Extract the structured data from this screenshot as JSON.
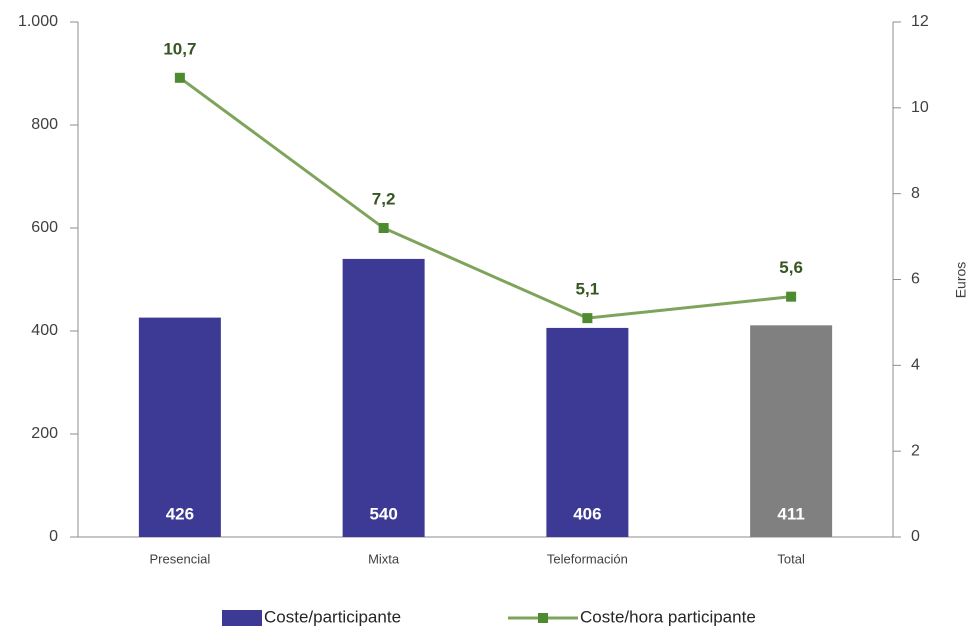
{
  "chart_data": {
    "type": "bar",
    "categories": [
      "Presencial",
      "Mixta",
      "Teleformación",
      "Total"
    ],
    "series": [
      {
        "name": "Coste/participante",
        "type": "bar",
        "color": "#3d3a96",
        "colors": [
          "#3d3a96",
          "#3d3a96",
          "#3d3a96",
          "#808080"
        ],
        "values": [
          426,
          540,
          406,
          411
        ]
      },
      {
        "name": "Coste/hora participante",
        "type": "line",
        "axis": "y2",
        "color": "#7ea45c",
        "marker_color": "#4e8a2f",
        "values": [
          10.7,
          7.2,
          5.1,
          5.6
        ],
        "value_labels": [
          "10,7",
          "7,2",
          "5,1",
          "5,6"
        ]
      }
    ],
    "ylim": [
      0,
      1000
    ],
    "yticks": [
      0,
      200,
      400,
      600,
      800,
      {
        "value": 1000,
        "label": "1.000"
      }
    ],
    "y2lim": [
      0,
      12
    ],
    "y2ticks": [
      0,
      2,
      4,
      6,
      8,
      10,
      12
    ],
    "y2label": "Euros",
    "legend": "bottom"
  }
}
